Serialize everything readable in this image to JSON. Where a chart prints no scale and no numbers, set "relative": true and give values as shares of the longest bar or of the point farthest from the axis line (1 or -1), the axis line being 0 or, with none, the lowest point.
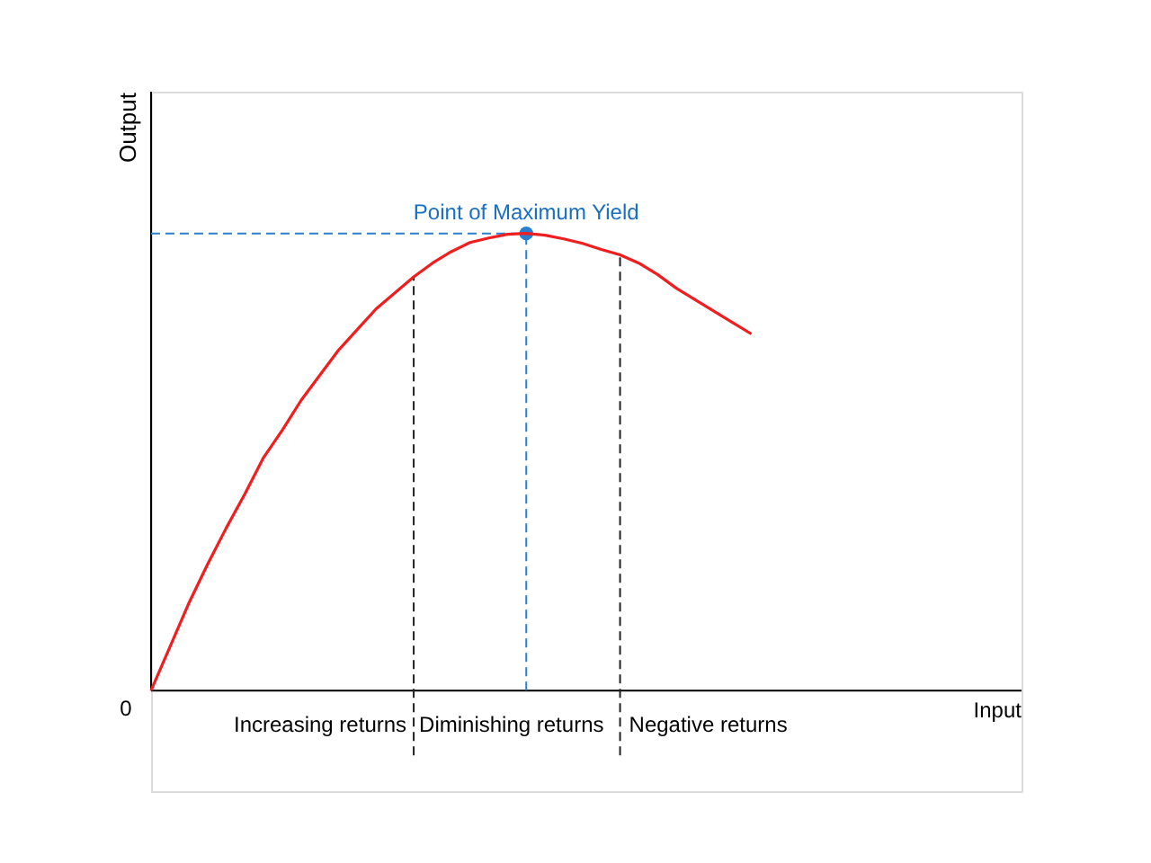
{
  "chart_data": {
    "type": "line",
    "relative": true,
    "ylabel": "Output",
    "grid": false,
    "categories": [
      null,
      null,
      null,
      null,
      null,
      null,
      null,
      null,
      null,
      null,
      null,
      null,
      null,
      null,
      null,
      null,
      null,
      null,
      null,
      null,
      null,
      null,
      null,
      null,
      null,
      null,
      null,
      null,
      null,
      null,
      null,
      null,
      null
    ],
    "series": [
      {
        "color": "#f01e1e",
        "line_style": "solid",
        "marker": "none",
        "values": [
          0,
          0.095,
          0.19,
          0.275,
          0.355,
          0.43,
          0.51,
          0.57,
          0.635,
          0.69,
          0.745,
          0.79,
          0.835,
          0.87,
          0.905,
          0.935,
          0.96,
          0.98,
          0.99,
          0.998,
          1,
          0.996,
          0.988,
          0.978,
          0.965,
          0.953,
          0.935,
          0.91,
          0.88,
          0.855,
          0.83,
          0.805,
          0.78
        ]
      }
    ],
    "ref_lines": [
      {
        "axis": "y",
        "value": 1,
        "color": "#2a7fcf",
        "line_style": "dashed"
      }
    ],
    "annotations": [
      "Point of Maximum Yield",
      "0",
      "Increasing returns",
      "Diminishing returns",
      "Negative returns",
      "Input"
    ]
  }
}
